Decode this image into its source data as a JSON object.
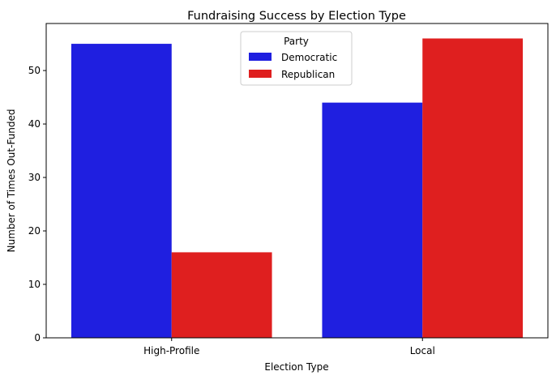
{
  "chart_data": {
    "type": "bar",
    "title": "Fundraising Success by Election Type",
    "xlabel": "Election Type",
    "ylabel": "Number of Times Out-Funded",
    "categories": [
      "High-Profile",
      "Local"
    ],
    "series": [
      {
        "name": "Democratic",
        "values": [
          55,
          44
        ],
        "color": "#1f1fe0"
      },
      {
        "name": "Republican",
        "values": [
          16,
          56
        ],
        "color": "#df1f1f"
      }
    ],
    "ylim": [
      0,
      58.8
    ],
    "yticks": [
      0,
      10,
      20,
      30,
      40,
      50
    ],
    "grid": false,
    "legend": {
      "title": "Party",
      "placement": "upper-center"
    }
  }
}
